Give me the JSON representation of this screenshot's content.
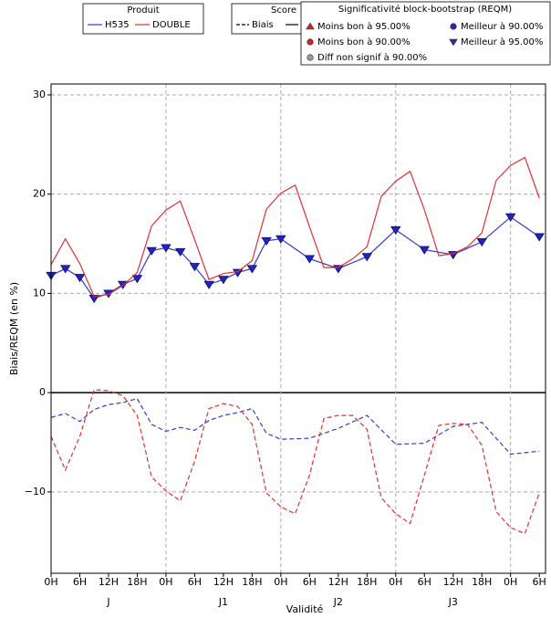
{
  "chart_data": {
    "type": "line",
    "ylabel": "Biais/REQM (en %)",
    "xlabel": "Validité",
    "xlim": [
      0,
      103.3
    ],
    "ylim": [
      -18.2,
      31.1
    ],
    "yticks": [
      30,
      20,
      10,
      0,
      {
        "value": -10,
        "label": "−10"
      }
    ],
    "xticks": [
      {
        "value": 0,
        "label": "0H"
      },
      {
        "value": 6,
        "label": "6H"
      },
      {
        "value": 12,
        "label": "12H"
      },
      {
        "value": 18,
        "label": "18H"
      },
      {
        "value": 24,
        "label": "0H"
      },
      {
        "value": 30,
        "label": "6H"
      },
      {
        "value": 36,
        "label": "12H"
      },
      {
        "value": 42,
        "label": "18H"
      },
      {
        "value": 48,
        "label": "0H"
      },
      {
        "value": 54,
        "label": "6H"
      },
      {
        "value": 60,
        "label": "12H"
      },
      {
        "value": 66,
        "label": "18H"
      },
      {
        "value": 72,
        "label": "0H"
      },
      {
        "value": 78,
        "label": "6H"
      },
      {
        "value": 84,
        "label": "12H"
      },
      {
        "value": 90,
        "label": "18H"
      },
      {
        "value": 96,
        "label": "0H"
      },
      {
        "value": 102,
        "label": "6H"
      }
    ],
    "day_labels": [
      {
        "value": 12,
        "label": "J"
      },
      {
        "value": 36,
        "label": "J1"
      },
      {
        "value": 60,
        "label": "J2"
      },
      {
        "value": 84,
        "label": "J3"
      }
    ],
    "grid": true,
    "series": [
      {
        "name": "H535",
        "color": "#3a3acc",
        "dashed": false,
        "marker": "triangle-down",
        "x": [
          0,
          3,
          6,
          9,
          12,
          15,
          18,
          21,
          24,
          27,
          30,
          33,
          36,
          39,
          42,
          45,
          48,
          54,
          60,
          66,
          72,
          78,
          84,
          90,
          96,
          102
        ],
        "values": [
          11.8,
          12.5,
          11.6,
          9.5,
          10.0,
          10.9,
          11.5,
          14.3,
          14.6,
          14.2,
          12.7,
          10.9,
          11.4,
          12.1,
          12.5,
          15.3,
          15.5,
          13.5,
          12.5,
          13.7,
          16.4,
          14.4,
          13.9,
          15.2,
          17.7,
          15.7
        ]
      },
      {
        "name": "DOUBLE",
        "color": "#e03030",
        "dashed": false,
        "x": [
          0,
          3,
          6,
          9,
          12,
          15,
          18,
          21,
          24,
          27,
          30,
          33,
          36,
          39,
          42,
          45,
          48,
          51,
          54,
          57,
          60,
          63,
          66,
          69,
          72,
          75,
          78,
          81,
          84,
          87,
          90,
          93,
          96,
          99,
          102
        ],
        "values": [
          12.9,
          15.5,
          13.0,
          9.7,
          9.9,
          10.8,
          12.1,
          16.8,
          18.4,
          19.3,
          15.4,
          11.4,
          12.0,
          12.2,
          13.3,
          18.5,
          20.1,
          20.9,
          16.7,
          12.6,
          12.6,
          13.5,
          14.7,
          19.8,
          21.3,
          22.3,
          18.4,
          13.8,
          14.0,
          14.7,
          16.1,
          21.4,
          22.9,
          23.7,
          19.6
        ]
      },
      {
        "name": "H535",
        "color": "#3a3acc",
        "dashed": true,
        "x": [
          0,
          3,
          6,
          9,
          12,
          15,
          18,
          21,
          24,
          27,
          30,
          33,
          36,
          39,
          42,
          45,
          48,
          54,
          60,
          66,
          72,
          78,
          84,
          90,
          96,
          102
        ],
        "values": [
          -2.5,
          -2.1,
          -2.9,
          -1.7,
          -1.2,
          -1.0,
          -0.6,
          -3.2,
          -3.9,
          -3.5,
          -3.8,
          -2.8,
          -2.3,
          -2.0,
          -1.6,
          -4.1,
          -4.7,
          -4.6,
          -3.6,
          -2.3,
          -5.2,
          -5.1,
          -3.4,
          -3.0,
          -6.2,
          -5.9
        ]
      },
      {
        "name": "DOUBLE",
        "color": "#e03030",
        "dashed": true,
        "x": [
          0,
          3,
          6,
          9,
          12,
          15,
          18,
          21,
          24,
          27,
          30,
          33,
          36,
          39,
          42,
          45,
          48,
          51,
          54,
          57,
          60,
          63,
          66,
          69,
          72,
          75,
          78,
          81,
          84,
          87,
          90,
          93,
          96,
          99,
          102
        ],
        "values": [
          -4.4,
          -7.8,
          -4.4,
          0.3,
          0.2,
          -0.3,
          -2.3,
          -8.5,
          -9.9,
          -10.9,
          -6.9,
          -1.6,
          -1.1,
          -1.4,
          -3.2,
          -10.1,
          -11.5,
          -12.2,
          -8.3,
          -2.6,
          -2.3,
          -2.3,
          -3.7,
          -10.6,
          -12.2,
          -13.2,
          -8.3,
          -3.3,
          -3.1,
          -3.2,
          -5.3,
          -12.0,
          -13.6,
          -14.2,
          -10.1
        ]
      }
    ],
    "legend_product": {
      "title": "Produit"
    },
    "legend_score": {
      "title": "Score",
      "entries": [
        {
          "label": "Biais",
          "dashed": true
        },
        {
          "dashed": false
        }
      ]
    },
    "legend_significance": {
      "title": "Significativité block-bootstrap (REQM)",
      "entries": [
        {
          "label": "Moins bon à 95.00%",
          "marker": "triangle-up",
          "color": "#d62020"
        },
        {
          "label": "Moins bon à 90.00%",
          "marker": "circle",
          "color": "#d62020"
        },
        {
          "label": "Diff non signif à 90.00%",
          "marker": "circle",
          "color": "#999999"
        },
        {
          "label": "Meilleur à 90.00%",
          "marker": "circle",
          "color": "#2a2ab0"
        },
        {
          "label": "Meilleur à 95.00%",
          "marker": "triangle-down",
          "color": "#2a2ab0"
        }
      ]
    }
  }
}
